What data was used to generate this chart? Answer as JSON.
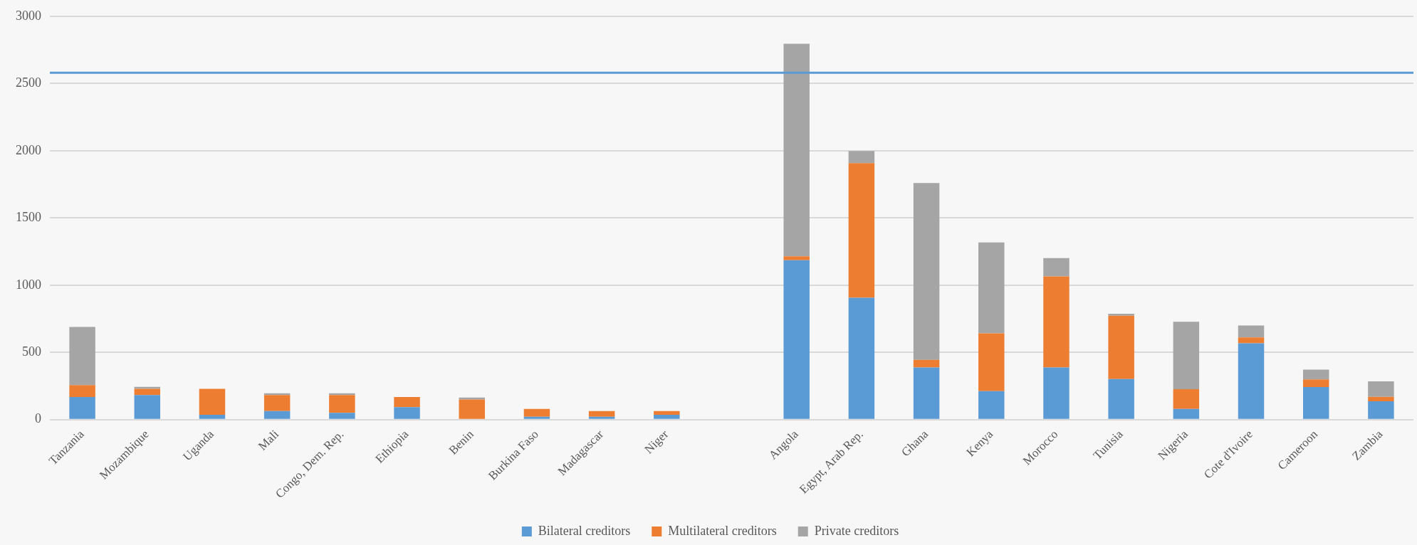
{
  "chart_data": {
    "type": "bar",
    "stacked": true,
    "categories": [
      "Tanzania",
      "Mozambique",
      "Uganda",
      "Mali",
      "Congo, Dem. Rep.",
      "Ethiopia",
      "Benin",
      "Burkina Faso",
      "Madagascar",
      "Niger",
      null,
      "Angola",
      "Egypt, Arab Rep.",
      "Ghana",
      "Kenya",
      "Morocco",
      "Tunisia",
      "Nigeria",
      "Cote d'Ivoire",
      "Cameroon",
      "Zambia"
    ],
    "series": [
      {
        "name": "Bilateral creditors",
        "color": "#5b9bd5",
        "values": [
          168,
          182,
          36,
          64,
          50,
          93,
          null,
          21,
          21,
          36,
          null,
          1185,
          906,
          388,
          212,
          388,
          302,
          80,
          568,
          242,
          136
        ]
      },
      {
        "name": "Multilateral creditors",
        "color": "#ed7d31",
        "values": [
          89,
          47,
          193,
          118,
          132,
          75,
          150,
          58,
          43,
          28,
          null,
          30,
          1002,
          57,
          429,
          677,
          471,
          146,
          43,
          57,
          33
        ]
      },
      {
        "name": "Private creditors",
        "color": "#a5a5a5",
        "values": [
          432,
          14,
          0,
          14,
          14,
          0,
          14,
          0,
          0,
          0,
          null,
          1580,
          90,
          1314,
          677,
          136,
          14,
          501,
          89,
          73,
          116
        ]
      }
    ],
    "ylim": [
      0,
      3000
    ],
    "yticks": [
      0,
      500,
      1000,
      1500,
      2000,
      2500,
      3000
    ],
    "grid": "y",
    "legend": "bottom",
    "ref_lines": [
      {
        "axis": "y",
        "value": 2580,
        "color": "#5b9bd5"
      }
    ]
  }
}
